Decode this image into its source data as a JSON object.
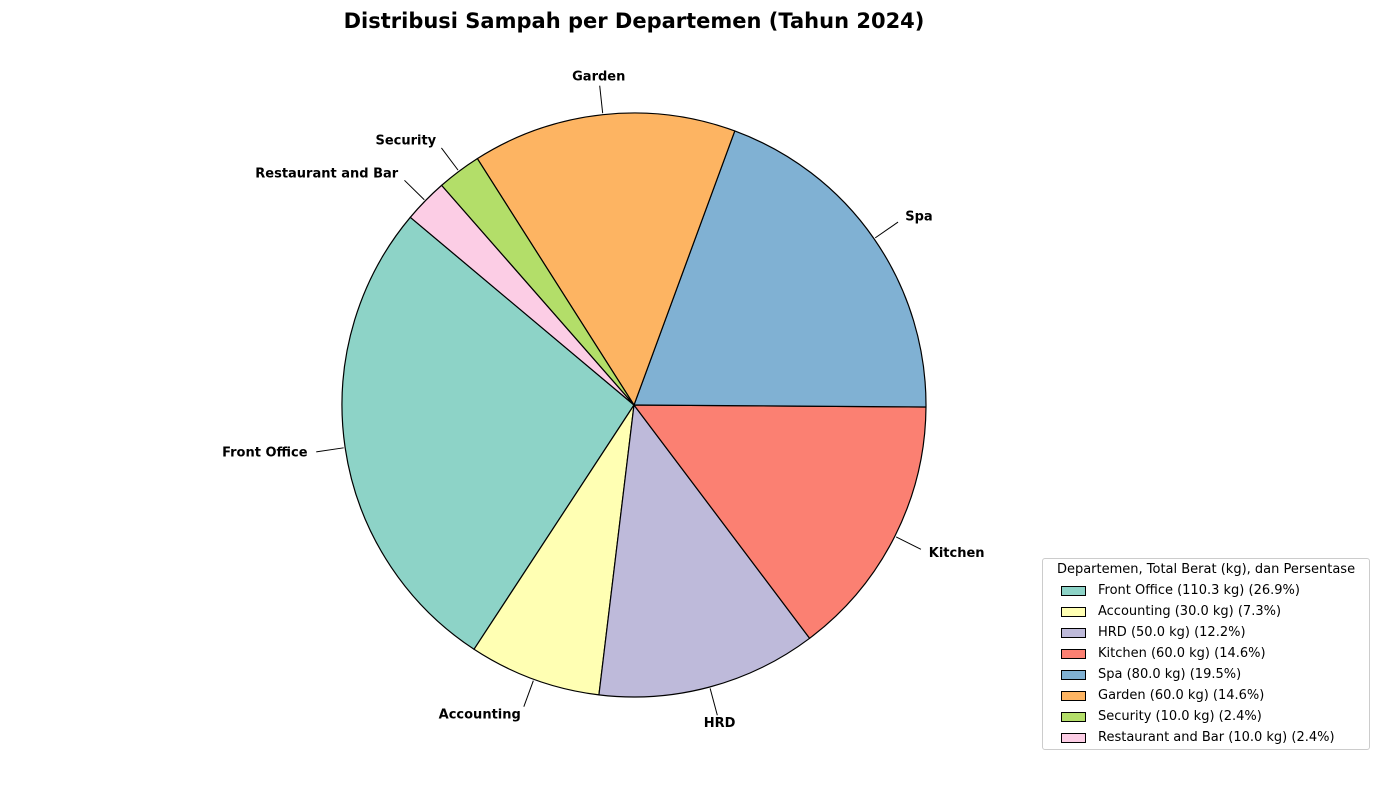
{
  "chart_data": {
    "type": "pie",
    "title": "Distribusi Sampah per Departemen (Tahun 2024)",
    "legend_title": "Departemen, Total Berat (kg), dan Persentase",
    "legend_position": "lower-right",
    "slices": [
      {
        "label": "Front Office",
        "value": 110.3,
        "percent": 26.9,
        "color": "#8dd3c7",
        "legend": "Front Office (110.3 kg) (26.9%)"
      },
      {
        "label": "Accounting",
        "value": 30.0,
        "percent": 7.3,
        "color": "#ffffb3",
        "legend": "Accounting (30.0 kg) (7.3%)"
      },
      {
        "label": "HRD",
        "value": 50.0,
        "percent": 12.2,
        "color": "#bebada",
        "legend": "HRD (50.0 kg) (12.2%)"
      },
      {
        "label": "Kitchen",
        "value": 60.0,
        "percent": 14.6,
        "color": "#fb8072",
        "legend": "Kitchen (60.0 kg) (14.6%)"
      },
      {
        "label": "Spa",
        "value": 80.0,
        "percent": 19.5,
        "color": "#80b1d3",
        "legend": "Spa (80.0 kg) (19.5%)"
      },
      {
        "label": "Garden",
        "value": 60.0,
        "percent": 14.6,
        "color": "#fdb462",
        "legend": "Garden (60.0 kg) (14.6%)"
      },
      {
        "label": "Security",
        "value": 10.0,
        "percent": 2.4,
        "color": "#b3de69",
        "legend": "Security (10.0 kg) (2.4%)"
      },
      {
        "label": "Restaurant and Bar",
        "value": 10.0,
        "percent": 2.4,
        "color": "#fccde5",
        "legend": "Restaurant and Bar (10.0 kg) (2.4%)"
      }
    ]
  }
}
